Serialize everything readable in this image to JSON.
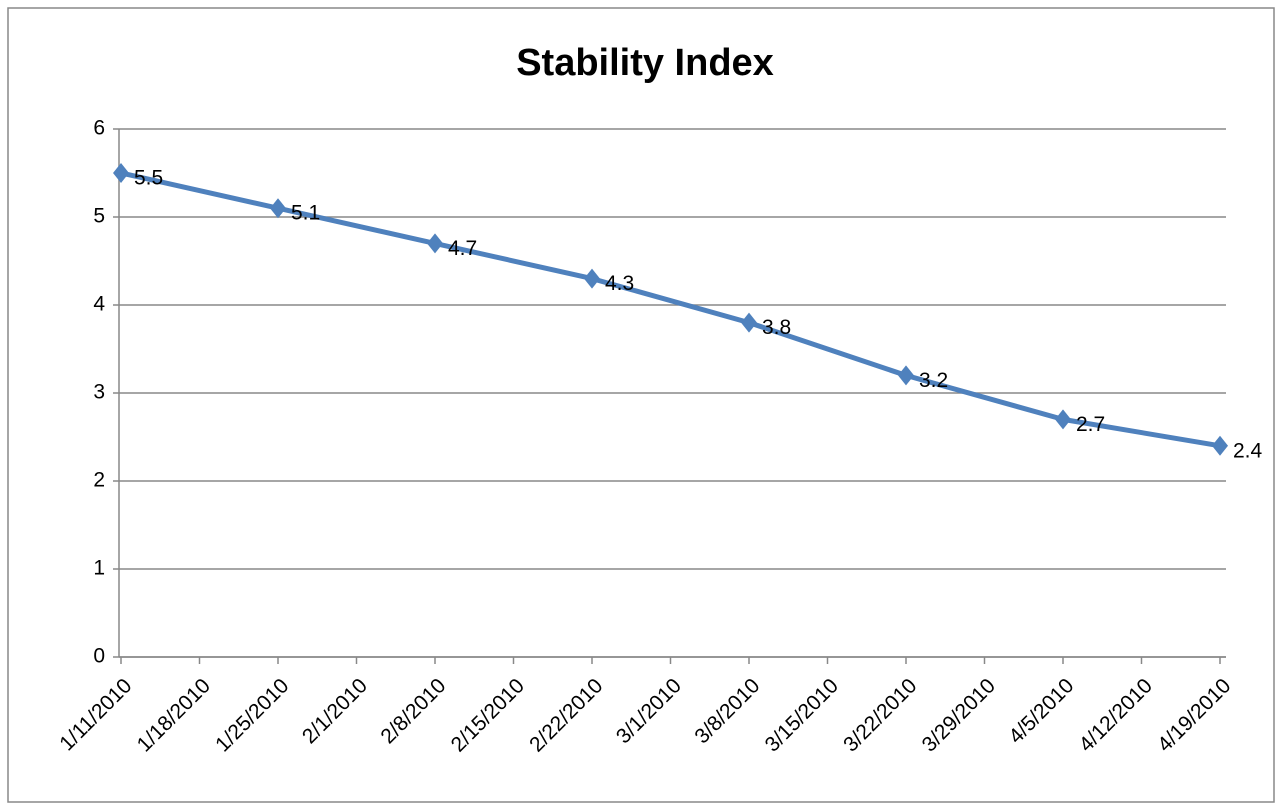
{
  "chart_data": {
    "type": "line",
    "title": "Stability Index",
    "x": [
      "1/11/2010",
      "1/25/2010",
      "2/8/2010",
      "2/22/2010",
      "3/8/2010",
      "3/22/2010",
      "4/5/2010",
      "4/19/2010"
    ],
    "series": [
      {
        "name": "Stability Index",
        "color": "#4f81bd",
        "values": [
          5.5,
          5.1,
          4.7,
          4.3,
          3.8,
          3.2,
          2.7,
          2.4
        ]
      }
    ],
    "xlim": [
      "1/11/2010",
      "4/19/2010"
    ],
    "xticks": [
      "1/11/2010",
      "1/18/2010",
      "1/25/2010",
      "2/1/2010",
      "2/8/2010",
      "2/15/2010",
      "2/22/2010",
      "3/1/2010",
      "3/8/2010",
      "3/15/2010",
      "3/22/2010",
      "3/29/2010",
      "4/5/2010",
      "4/12/2010",
      "4/19/2010"
    ],
    "ylim": [
      0,
      6
    ],
    "yticks": [
      0,
      1,
      2,
      3,
      4,
      5,
      6
    ],
    "grid": true
  }
}
